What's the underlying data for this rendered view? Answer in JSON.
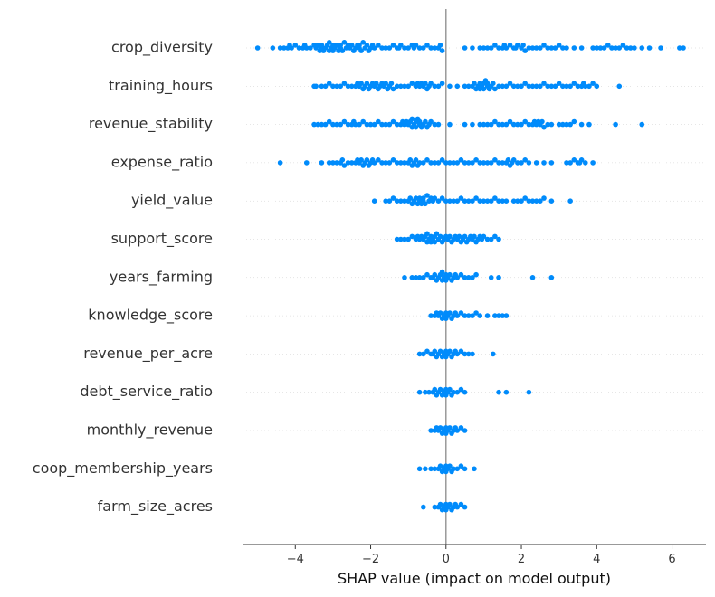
{
  "chart_data": {
    "type": "scatter",
    "subtype": "shap-beeswarm-summary",
    "xlabel": "SHAP value (impact on model output)",
    "ylabel": "",
    "xlim": [
      -5.4,
      6.9
    ],
    "x_ticks": [
      -4,
      -2,
      0,
      2,
      4,
      6
    ],
    "x_tick_labels": [
      "−4",
      "−2",
      "0",
      "2",
      "4",
      "6"
    ],
    "zero_line": 0,
    "grid": false,
    "row_guides": "dotted",
    "point_color": "#008bfb",
    "features": [
      {
        "name": "crop_diversity",
        "values": [
          -5.0,
          -4.6,
          -4.4,
          -4.3,
          -4.2,
          -4.15,
          -4.1,
          -4.0,
          -3.9,
          -3.8,
          -3.75,
          -3.7,
          -3.6,
          -3.5,
          -3.45,
          -3.4,
          -3.35,
          -3.3,
          -3.3,
          -3.25,
          -3.2,
          -3.15,
          -3.1,
          -3.1,
          -3.05,
          -3.0,
          -3.0,
          -2.95,
          -2.9,
          -2.85,
          -2.8,
          -2.8,
          -2.75,
          -2.7,
          -2.65,
          -2.6,
          -2.55,
          -2.5,
          -2.45,
          -2.4,
          -2.35,
          -2.3,
          -2.3,
          -2.25,
          -2.2,
          -2.15,
          -2.1,
          -2.05,
          -2.0,
          -1.95,
          -1.9,
          -1.8,
          -1.7,
          -1.6,
          -1.5,
          -1.4,
          -1.3,
          -1.25,
          -1.2,
          -1.1,
          -1.0,
          -0.9,
          -0.85,
          -0.8,
          -0.7,
          -0.6,
          -0.5,
          -0.4,
          -0.3,
          -0.2,
          -0.15,
          -0.1,
          0.5,
          0.7,
          0.9,
          1.0,
          1.1,
          1.2,
          1.3,
          1.4,
          1.5,
          1.55,
          1.6,
          1.7,
          1.8,
          1.85,
          1.9,
          2.0,
          2.05,
          2.1,
          2.2,
          2.3,
          2.4,
          2.5,
          2.6,
          2.7,
          2.8,
          2.9,
          3.0,
          3.1,
          3.2,
          3.4,
          3.6,
          3.9,
          4.0,
          4.1,
          4.2,
          4.3,
          4.4,
          4.5,
          4.6,
          4.7,
          4.8,
          4.9,
          5.0,
          5.2,
          5.4,
          5.7,
          6.2,
          6.3
        ]
      },
      {
        "name": "training_hours",
        "values": [
          -3.5,
          -3.45,
          -3.3,
          -3.2,
          -3.1,
          -3.0,
          -2.9,
          -2.8,
          -2.7,
          -2.6,
          -2.5,
          -2.4,
          -2.35,
          -2.3,
          -2.25,
          -2.2,
          -2.15,
          -2.1,
          -2.05,
          -2.0,
          -1.95,
          -1.9,
          -1.85,
          -1.8,
          -1.75,
          -1.7,
          -1.65,
          -1.6,
          -1.55,
          -1.5,
          -1.45,
          -1.4,
          -1.3,
          -1.2,
          -1.1,
          -1.0,
          -0.9,
          -0.8,
          -0.75,
          -0.7,
          -0.65,
          -0.6,
          -0.55,
          -0.5,
          -0.45,
          -0.4,
          -0.3,
          -0.2,
          -0.1,
          0.1,
          0.3,
          0.5,
          0.6,
          0.7,
          0.75,
          0.8,
          0.85,
          0.9,
          0.9,
          0.95,
          1.0,
          1.0,
          1.05,
          1.1,
          1.1,
          1.15,
          1.2,
          1.25,
          1.3,
          1.4,
          1.5,
          1.6,
          1.7,
          1.8,
          1.9,
          2.0,
          2.1,
          2.2,
          2.3,
          2.4,
          2.5,
          2.6,
          2.7,
          2.8,
          2.9,
          3.0,
          3.1,
          3.2,
          3.3,
          3.4,
          3.5,
          3.6,
          3.65,
          3.7,
          3.8,
          3.9,
          4.0,
          4.6
        ]
      },
      {
        "name": "revenue_stability",
        "values": [
          -3.5,
          -3.4,
          -3.3,
          -3.2,
          -3.1,
          -3.0,
          -2.9,
          -2.8,
          -2.7,
          -2.6,
          -2.5,
          -2.45,
          -2.4,
          -2.3,
          -2.2,
          -2.1,
          -2.0,
          -1.9,
          -1.8,
          -1.7,
          -1.6,
          -1.5,
          -1.4,
          -1.3,
          -1.2,
          -1.15,
          -1.1,
          -1.05,
          -1.0,
          -0.95,
          -0.9,
          -0.9,
          -0.85,
          -0.8,
          -0.8,
          -0.75,
          -0.7,
          -0.7,
          -0.65,
          -0.6,
          -0.55,
          -0.5,
          -0.45,
          -0.4,
          -0.3,
          -0.2,
          0.1,
          0.5,
          0.7,
          0.9,
          1.0,
          1.1,
          1.2,
          1.3,
          1.4,
          1.5,
          1.6,
          1.7,
          1.8,
          1.9,
          2.0,
          2.1,
          2.2,
          2.3,
          2.35,
          2.4,
          2.45,
          2.5,
          2.55,
          2.6,
          2.7,
          2.8,
          3.0,
          3.1,
          3.2,
          3.3,
          3.4,
          3.6,
          3.8,
          4.5,
          5.2
        ]
      },
      {
        "name": "expense_ratio",
        "values": [
          -4.4,
          -3.7,
          -3.3,
          -3.1,
          -3.0,
          -2.9,
          -2.8,
          -2.75,
          -2.7,
          -2.6,
          -2.5,
          -2.4,
          -2.35,
          -2.3,
          -2.25,
          -2.2,
          -2.15,
          -2.1,
          -2.05,
          -2.0,
          -1.95,
          -1.9,
          -1.8,
          -1.7,
          -1.6,
          -1.5,
          -1.4,
          -1.3,
          -1.2,
          -1.1,
          -1.0,
          -0.95,
          -0.9,
          -0.85,
          -0.8,
          -0.75,
          -0.7,
          -0.6,
          -0.5,
          -0.4,
          -0.3,
          -0.2,
          -0.1,
          0.0,
          0.1,
          0.2,
          0.3,
          0.4,
          0.5,
          0.6,
          0.7,
          0.8,
          0.9,
          1.0,
          1.1,
          1.2,
          1.3,
          1.4,
          1.5,
          1.6,
          1.65,
          1.7,
          1.75,
          1.8,
          1.9,
          2.0,
          2.1,
          2.2,
          2.4,
          2.6,
          2.8,
          3.2,
          3.3,
          3.4,
          3.5,
          3.55,
          3.6,
          3.7,
          3.9
        ]
      },
      {
        "name": "yield_value",
        "values": [
          -1.9,
          -1.6,
          -1.5,
          -1.4,
          -1.3,
          -1.2,
          -1.1,
          -1.0,
          -0.95,
          -0.9,
          -0.85,
          -0.8,
          -0.75,
          -0.7,
          -0.7,
          -0.65,
          -0.6,
          -0.6,
          -0.55,
          -0.5,
          -0.45,
          -0.4,
          -0.35,
          -0.3,
          -0.2,
          -0.1,
          0.0,
          0.1,
          0.2,
          0.3,
          0.4,
          0.5,
          0.6,
          0.7,
          0.8,
          0.9,
          1.0,
          1.1,
          1.2,
          1.3,
          1.4,
          1.5,
          1.6,
          1.8,
          1.9,
          2.0,
          2.1,
          2.2,
          2.3,
          2.4,
          2.5,
          2.6,
          2.8,
          3.3
        ]
      },
      {
        "name": "support_score",
        "values": [
          -1.3,
          -1.2,
          -1.1,
          -1.0,
          -0.9,
          -0.8,
          -0.75,
          -0.7,
          -0.65,
          -0.6,
          -0.55,
          -0.5,
          -0.5,
          -0.45,
          -0.4,
          -0.4,
          -0.35,
          -0.3,
          -0.3,
          -0.25,
          -0.2,
          -0.15,
          -0.1,
          -0.05,
          0.0,
          0.05,
          0.1,
          0.15,
          0.2,
          0.25,
          0.3,
          0.35,
          0.4,
          0.45,
          0.5,
          0.55,
          0.6,
          0.65,
          0.7,
          0.75,
          0.8,
          0.85,
          0.9,
          0.95,
          1.0,
          1.1,
          1.2,
          1.3,
          1.4
        ]
      },
      {
        "name": "years_farming",
        "values": [
          -1.1,
          -0.9,
          -0.8,
          -0.7,
          -0.6,
          -0.5,
          -0.4,
          -0.35,
          -0.3,
          -0.25,
          -0.2,
          -0.15,
          -0.1,
          -0.1,
          -0.05,
          0.0,
          0.0,
          0.05,
          0.1,
          0.15,
          0.2,
          0.25,
          0.3,
          0.4,
          0.5,
          0.6,
          0.7,
          0.8,
          1.2,
          1.4,
          2.3,
          2.8
        ]
      },
      {
        "name": "knowledge_score",
        "values": [
          -0.4,
          -0.3,
          -0.25,
          -0.2,
          -0.15,
          -0.1,
          -0.05,
          0.0,
          0.0,
          0.05,
          0.1,
          0.15,
          0.2,
          0.25,
          0.3,
          0.4,
          0.5,
          0.6,
          0.7,
          0.8,
          0.9,
          1.1,
          1.3,
          1.4,
          1.5,
          1.6
        ]
      },
      {
        "name": "revenue_per_acre",
        "values": [
          -0.7,
          -0.6,
          -0.5,
          -0.4,
          -0.35,
          -0.3,
          -0.25,
          -0.2,
          -0.15,
          -0.1,
          -0.05,
          0.0,
          0.0,
          0.05,
          0.1,
          0.15,
          0.2,
          0.25,
          0.3,
          0.4,
          0.5,
          0.6,
          0.7,
          1.25
        ]
      },
      {
        "name": "debt_service_ratio",
        "values": [
          -0.7,
          -0.55,
          -0.45,
          -0.35,
          -0.3,
          -0.25,
          -0.2,
          -0.15,
          -0.1,
          -0.05,
          0.0,
          0.0,
          0.05,
          0.1,
          0.15,
          0.2,
          0.3,
          0.4,
          0.5,
          1.4,
          1.6,
          2.2
        ]
      },
      {
        "name": "monthly_revenue",
        "values": [
          -0.4,
          -0.3,
          -0.25,
          -0.2,
          -0.15,
          -0.1,
          -0.05,
          0.0,
          0.0,
          0.05,
          0.1,
          0.15,
          0.2,
          0.25,
          0.3,
          0.4,
          0.5
        ]
      },
      {
        "name": "coop_membership_years",
        "values": [
          -0.7,
          -0.55,
          -0.4,
          -0.3,
          -0.2,
          -0.15,
          -0.1,
          -0.05,
          0.0,
          0.0,
          0.05,
          0.1,
          0.15,
          0.2,
          0.3,
          0.4,
          0.5,
          0.75
        ]
      },
      {
        "name": "farm_size_acres",
        "values": [
          -0.6,
          -0.3,
          -0.2,
          -0.15,
          -0.1,
          -0.05,
          0.0,
          0.0,
          0.05,
          0.1,
          0.15,
          0.2,
          0.25,
          0.3,
          0.4,
          0.5
        ]
      }
    ]
  }
}
